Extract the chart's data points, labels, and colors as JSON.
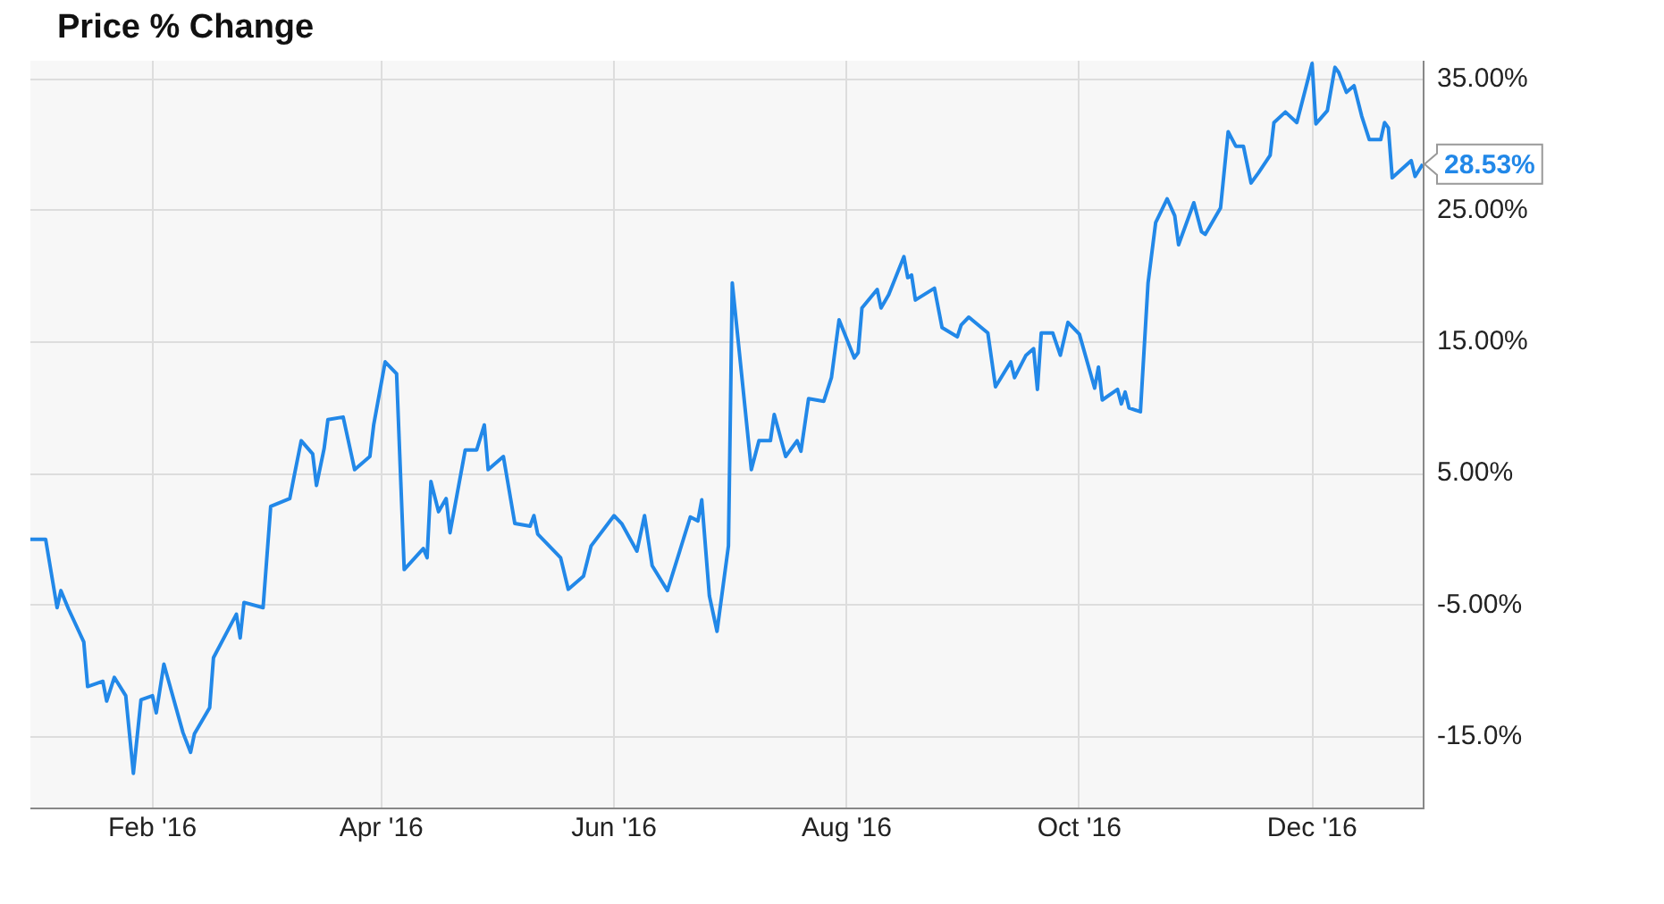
{
  "chart_data": {
    "type": "line",
    "title": "Price % Change",
    "x": [
      "2015-12-31",
      "2016-01-04",
      "2016-01-07",
      "2016-01-08",
      "2016-01-10",
      "2016-01-14",
      "2016-01-15",
      "2016-01-19",
      "2016-01-20",
      "2016-01-22",
      "2016-01-25",
      "2016-01-27",
      "2016-01-29",
      "2016-02-01",
      "2016-02-02",
      "2016-02-04",
      "2016-02-09",
      "2016-02-11",
      "2016-02-12",
      "2016-02-16",
      "2016-02-17",
      "2016-02-23",
      "2016-02-24",
      "2016-02-25",
      "2016-03-01",
      "2016-03-03",
      "2016-03-08",
      "2016-03-09",
      "2016-03-11",
      "2016-03-14",
      "2016-03-15",
      "2016-03-17",
      "2016-03-18",
      "2016-03-22",
      "2016-03-25",
      "2016-03-29",
      "2016-03-30",
      "2016-04-02",
      "2016-04-05",
      "2016-04-07",
      "2016-04-12",
      "2016-04-13",
      "2016-04-14",
      "2016-04-16",
      "2016-04-18",
      "2016-04-19",
      "2016-04-23",
      "2016-04-26",
      "2016-04-28",
      "2016-04-29",
      "2016-05-03",
      "2016-05-06",
      "2016-05-10",
      "2016-05-11",
      "2016-05-12",
      "2016-05-18",
      "2016-05-20",
      "2016-05-24",
      "2016-05-26",
      "2016-06-01",
      "2016-06-03",
      "2016-06-07",
      "2016-06-09",
      "2016-06-11",
      "2016-06-15",
      "2016-06-21",
      "2016-06-23",
      "2016-06-24",
      "2016-06-26",
      "2016-06-28",
      "2016-07-01",
      "2016-07-02",
      "2016-07-07",
      "2016-07-09",
      "2016-07-12",
      "2016-07-13",
      "2016-07-16",
      "2016-07-19",
      "2016-07-20",
      "2016-07-22",
      "2016-07-26",
      "2016-07-28",
      "2016-07-30",
      "2016-08-03",
      "2016-08-04",
      "2016-08-05",
      "2016-08-09",
      "2016-08-10",
      "2016-08-12",
      "2016-08-16",
      "2016-08-17",
      "2016-08-18",
      "2016-08-19",
      "2016-08-24",
      "2016-08-26",
      "2016-08-30",
      "2016-08-31",
      "2016-09-02",
      "2016-09-07",
      "2016-09-09",
      "2016-09-13",
      "2016-09-14",
      "2016-09-17",
      "2016-09-19",
      "2016-09-20",
      "2016-09-21",
      "2016-09-24",
      "2016-09-26",
      "2016-09-28",
      "2016-10-01",
      "2016-10-05",
      "2016-10-06",
      "2016-10-07",
      "2016-10-11",
      "2016-10-12",
      "2016-10-13",
      "2016-10-14",
      "2016-10-17",
      "2016-10-19",
      "2016-10-21",
      "2016-10-24",
      "2016-10-26",
      "2016-10-27",
      "2016-10-31",
      "2016-11-02",
      "2016-11-03",
      "2016-11-07",
      "2016-11-09",
      "2016-11-11",
      "2016-11-13",
      "2016-11-15",
      "2016-11-17",
      "2016-11-20",
      "2016-11-21",
      "2016-11-24",
      "2016-11-27",
      "2016-12-01",
      "2016-12-02",
      "2016-12-05",
      "2016-12-07",
      "2016-12-08",
      "2016-12-10",
      "2016-12-12",
      "2016-12-14",
      "2016-12-16",
      "2016-12-19",
      "2016-12-20",
      "2016-12-21",
      "2016-12-22",
      "2016-12-27",
      "2016-12-28",
      "2016-12-30"
    ],
    "series": [
      {
        "color": "#2288e8",
        "values": [
          0,
          0,
          -5.2,
          -3.9,
          -5.3,
          -7.8,
          -11.2,
          -10.8,
          -12.3,
          -10.5,
          -11.9,
          -17.8,
          -12.2,
          -11.9,
          -13.2,
          -9.5,
          -14.7,
          -16.2,
          -14.8,
          -12.8,
          -9.0,
          -5.7,
          -7.5,
          -4.8,
          -5.2,
          2.5,
          3.1,
          4.6,
          7.5,
          6.5,
          4.1,
          6.9,
          9.1,
          9.3,
          5.3,
          6.3,
          8.7,
          13.5,
          12.6,
          -2.3,
          -0.7,
          -1.4,
          4.4,
          2.1,
          3.1,
          0.5,
          6.8,
          6.8,
          8.7,
          5.3,
          6.3,
          1.2,
          1.0,
          1.8,
          0.4,
          -1.4,
          -3.8,
          -2.8,
          -0.5,
          1.8,
          1.2,
          -0.9,
          1.8,
          -2.0,
          -3.9,
          1.7,
          1.4,
          3.0,
          -4.3,
          -7.0,
          -0.5,
          19.5,
          5.3,
          7.5,
          7.5,
          9.5,
          6.3,
          7.5,
          6.7,
          10.7,
          10.5,
          12.3,
          16.7,
          13.8,
          14.2,
          17.6,
          19.0,
          17.6,
          18.6,
          21.5,
          19.9,
          20.1,
          18.2,
          19.1,
          16.1,
          15.4,
          16.3,
          16.9,
          15.7,
          11.6,
          13.5,
          12.3,
          14.0,
          14.5,
          11.4,
          15.7,
          15.7,
          14.0,
          16.5,
          15.6,
          11.5,
          13.1,
          10.6,
          11.4,
          10.3,
          11.2,
          10.0,
          9.7,
          19.5,
          24.1,
          25.9,
          24.6,
          22.4,
          25.6,
          23.4,
          23.2,
          25.2,
          31.0,
          29.9,
          29.9,
          27.1,
          27.9,
          29.2,
          31.7,
          32.5,
          31.7,
          36.2,
          31.6,
          32.6,
          35.9,
          35.5,
          34.0,
          34.5,
          32.2,
          30.4,
          30.4,
          31.7,
          31.3,
          27.5,
          28.8,
          27.6,
          28.53
        ]
      }
    ],
    "xlim": [
      "2015-12-31",
      "2016-12-30"
    ],
    "xticks": [
      {
        "value": "2016-02-01",
        "label": "Feb '16"
      },
      {
        "value": "2016-04-01",
        "label": "Apr '16"
      },
      {
        "value": "2016-06-01",
        "label": "Jun '16"
      },
      {
        "value": "2016-08-01",
        "label": "Aug '16"
      },
      {
        "value": "2016-10-01",
        "label": "Oct '16"
      },
      {
        "value": "2016-12-01",
        "label": "Dec '16"
      }
    ],
    "ylim": [
      -20.4,
      36.4
    ],
    "yticks": [
      {
        "value": -15,
        "label": "-15.0%"
      },
      {
        "value": -5,
        "label": "-5.00%"
      },
      {
        "value": 5,
        "label": "5.00%"
      },
      {
        "value": 15,
        "label": "15.00%"
      },
      {
        "value": 25,
        "label": "25.00%"
      },
      {
        "value": 35,
        "label": "35.00%"
      }
    ],
    "annotations": [
      {
        "text": "28.53%",
        "x": "2016-12-30",
        "y": 28.53
      }
    ],
    "grid": true,
    "legend": false,
    "marker": "none",
    "line_style": "solid"
  }
}
